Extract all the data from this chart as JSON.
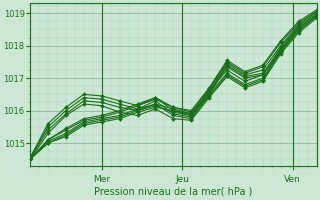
{
  "title": "",
  "xlabel": "Pression niveau de la mer( hPa )",
  "ylabel": "",
  "ylim": [
    1014.3,
    1019.3
  ],
  "xlim": [
    0,
    96
  ],
  "yticks": [
    1015,
    1016,
    1017,
    1018,
    1019
  ],
  "bg_color": "#cce8d4",
  "grid_major_color": "#8ab89a",
  "grid_minor_color": "#aad0b8",
  "line_color": "#1a6e1a",
  "marker": "D",
  "markersize": 2.0,
  "linewidth": 0.8,
  "series": [
    [
      0,
      1014.5,
      6,
      1015.0,
      12,
      1015.2,
      18,
      1015.55,
      24,
      1015.65,
      30,
      1015.75,
      36,
      1015.95,
      42,
      1016.1,
      48,
      1016.0,
      54,
      1015.85,
      60,
      1016.5,
      66,
      1017.35,
      72,
      1017.0,
      78,
      1017.1,
      84,
      1017.85,
      90,
      1018.55,
      96,
      1018.95
    ],
    [
      0,
      1014.5,
      6,
      1015.05,
      12,
      1015.3,
      18,
      1015.65,
      24,
      1015.75,
      30,
      1015.85,
      36,
      1016.05,
      42,
      1016.2,
      48,
      1016.05,
      54,
      1015.9,
      60,
      1016.6,
      66,
      1017.45,
      72,
      1017.1,
      78,
      1017.25,
      84,
      1018.0,
      90,
      1018.65,
      96,
      1019.05
    ],
    [
      0,
      1014.5,
      6,
      1015.1,
      12,
      1015.4,
      18,
      1015.7,
      24,
      1015.8,
      30,
      1015.95,
      36,
      1016.15,
      42,
      1016.35,
      48,
      1016.1,
      54,
      1015.95,
      60,
      1016.65,
      66,
      1017.5,
      72,
      1017.15,
      78,
      1017.35,
      84,
      1018.1,
      90,
      1018.7,
      96,
      1019.05
    ],
    [
      0,
      1014.5,
      6,
      1015.1,
      12,
      1015.45,
      18,
      1015.75,
      24,
      1015.85,
      30,
      1016.0,
      36,
      1016.2,
      42,
      1016.4,
      48,
      1016.1,
      54,
      1016.0,
      60,
      1016.7,
      66,
      1017.55,
      72,
      1017.2,
      78,
      1017.4,
      84,
      1018.15,
      90,
      1018.75,
      96,
      1019.1
    ],
    [
      0,
      1014.5,
      6,
      1015.0,
      12,
      1015.25,
      18,
      1015.6,
      24,
      1015.7,
      30,
      1015.8,
      36,
      1016.0,
      42,
      1016.15,
      48,
      1015.95,
      54,
      1015.85,
      60,
      1016.55,
      66,
      1017.4,
      72,
      1017.05,
      78,
      1017.15,
      84,
      1017.9,
      90,
      1018.55,
      96,
      1018.95
    ],
    [
      0,
      1014.55,
      6,
      1015.4,
      12,
      1015.9,
      18,
      1016.3,
      24,
      1016.25,
      30,
      1016.1,
      36,
      1016.0,
      42,
      1016.2,
      48,
      1015.85,
      54,
      1015.75,
      60,
      1016.45,
      66,
      1017.1,
      72,
      1016.75,
      78,
      1016.95,
      84,
      1017.8,
      90,
      1018.45,
      96,
      1018.9
    ],
    [
      0,
      1014.55,
      6,
      1015.5,
      12,
      1016.0,
      18,
      1016.4,
      24,
      1016.35,
      30,
      1016.2,
      36,
      1016.05,
      42,
      1016.3,
      48,
      1015.9,
      54,
      1015.8,
      60,
      1016.5,
      66,
      1017.15,
      72,
      1016.8,
      78,
      1017.0,
      84,
      1017.85,
      90,
      1018.5,
      96,
      1018.9
    ],
    [
      0,
      1014.5,
      6,
      1015.3,
      12,
      1015.85,
      18,
      1016.2,
      24,
      1016.15,
      30,
      1015.95,
      36,
      1015.85,
      42,
      1016.05,
      48,
      1015.75,
      54,
      1015.7,
      60,
      1016.4,
      66,
      1017.05,
      72,
      1016.7,
      78,
      1016.9,
      84,
      1017.75,
      90,
      1018.4,
      96,
      1018.85
    ],
    [
      0,
      1014.55,
      6,
      1015.6,
      12,
      1016.1,
      18,
      1016.5,
      24,
      1016.45,
      30,
      1016.3,
      36,
      1016.15,
      42,
      1016.4,
      48,
      1016.0,
      54,
      1015.9,
      60,
      1016.6,
      66,
      1017.25,
      72,
      1016.9,
      78,
      1017.1,
      84,
      1017.95,
      90,
      1018.6,
      96,
      1019.0
    ]
  ]
}
